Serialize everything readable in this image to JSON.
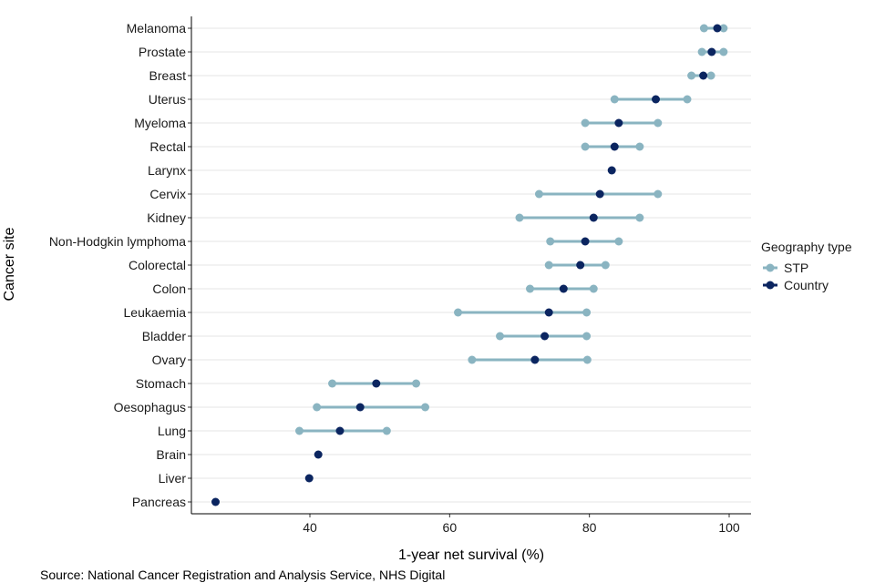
{
  "chart_data": {
    "type": "dumbbell",
    "xlabel": "1-year net survival (%)",
    "ylabel": "Cancer site",
    "xlim": [
      23,
      103
    ],
    "xticks": [
      40,
      60,
      80,
      100
    ],
    "grid": "horizontal major",
    "legend": {
      "title": "Geography type",
      "position": "right",
      "entries": [
        {
          "name": "STP",
          "color": "#8ab4c1"
        },
        {
          "name": "Country",
          "color": "#0b2560"
        }
      ]
    },
    "caption": "Source: National Cancer Registration and Analysis Service, NHS Digital",
    "categories": [
      "Melanoma",
      "Prostate",
      "Breast",
      "Uterus",
      "Myeloma",
      "Rectal",
      "Larynx",
      "Cervix",
      "Kidney",
      "Non-Hodgkin lymphoma",
      "Colorectal",
      "Colon",
      "Leukaemia",
      "Bladder",
      "Ovary",
      "Stomach",
      "Oesophagus",
      "Lung",
      "Brain",
      "Liver",
      "Pancreas"
    ],
    "series": [
      {
        "name": "STP",
        "kind": "range",
        "color": "#8ab4c1",
        "min": [
          96.4,
          96.1,
          94.6,
          83.6,
          79.4,
          79.4,
          null,
          72.8,
          70.0,
          74.4,
          74.2,
          71.5,
          61.2,
          67.2,
          63.2,
          43.2,
          41.0,
          38.5,
          null,
          null,
          null
        ],
        "max": [
          99.2,
          99.2,
          97.4,
          94.0,
          89.8,
          87.2,
          null,
          89.8,
          87.2,
          84.2,
          82.3,
          80.6,
          79.6,
          79.6,
          79.7,
          55.2,
          56.5,
          51.0,
          null,
          null,
          null
        ]
      },
      {
        "name": "Country",
        "kind": "point",
        "color": "#0b2560",
        "values": [
          98.3,
          97.5,
          96.3,
          89.5,
          84.2,
          83.6,
          83.2,
          81.5,
          80.6,
          79.4,
          78.7,
          76.3,
          74.2,
          73.6,
          72.2,
          49.5,
          47.2,
          44.3,
          41.2,
          39.9,
          26.5
        ]
      }
    ]
  }
}
